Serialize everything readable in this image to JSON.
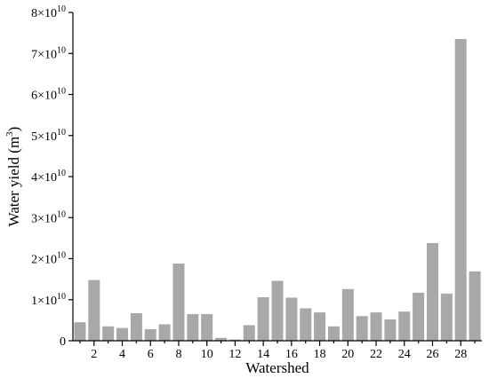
{
  "chart_data": {
    "type": "bar",
    "xlabel": "Watershed",
    "ylabel": "Water yield (m",
    "ylabel_sup": "3",
    "ylabel_close": ")",
    "categories": [
      "1",
      "2",
      "3",
      "4",
      "5",
      "6",
      "7",
      "8",
      "9",
      "10",
      "11",
      "12",
      "13",
      "14",
      "15",
      "16",
      "17",
      "18",
      "19",
      "20",
      "21",
      "22",
      "23",
      "24",
      "25",
      "26",
      "27",
      "28",
      "29"
    ],
    "x_tick_labels": [
      "2",
      "4",
      "6",
      "8",
      "10",
      "12",
      "14",
      "16",
      "18",
      "20",
      "22",
      "24",
      "26",
      "28"
    ],
    "values": [
      4500000000.0,
      14800000000.0,
      3500000000.0,
      3100000000.0,
      6700000000.0,
      2800000000.0,
      4000000000.0,
      18800000000.0,
      6500000000.0,
      6500000000.0,
      700000000.0,
      300000000.0,
      3800000000.0,
      10600000000.0,
      14600000000.0,
      10500000000.0,
      7900000000.0,
      6900000000.0,
      3500000000.0,
      12600000000.0,
      6000000000.0,
      6900000000.0,
      5200000000.0,
      7100000000.0,
      11700000000.0,
      23800000000.0,
      11500000000.0,
      73500000000.0,
      16900000000.0
    ],
    "ylim": [
      0,
      80000000000.0
    ],
    "y_ticks": [
      {
        "value": 0,
        "mantissa": "0",
        "exp": ""
      },
      {
        "value": 10000000000.0,
        "mantissa": "1×10",
        "exp": "10"
      },
      {
        "value": 20000000000.0,
        "mantissa": "2×10",
        "exp": "10"
      },
      {
        "value": 30000000000.0,
        "mantissa": "3×10",
        "exp": "10"
      },
      {
        "value": 40000000000.0,
        "mantissa": "4×10",
        "exp": "10"
      },
      {
        "value": 50000000000.0,
        "mantissa": "5×10",
        "exp": "10"
      },
      {
        "value": 60000000000.0,
        "mantissa": "6×10",
        "exp": "10"
      },
      {
        "value": 70000000000.0,
        "mantissa": "7×10",
        "exp": "10"
      },
      {
        "value": 80000000000.0,
        "mantissa": "8×10",
        "exp": "10"
      }
    ],
    "grid": false,
    "bar_color": "#a8a8a8"
  }
}
